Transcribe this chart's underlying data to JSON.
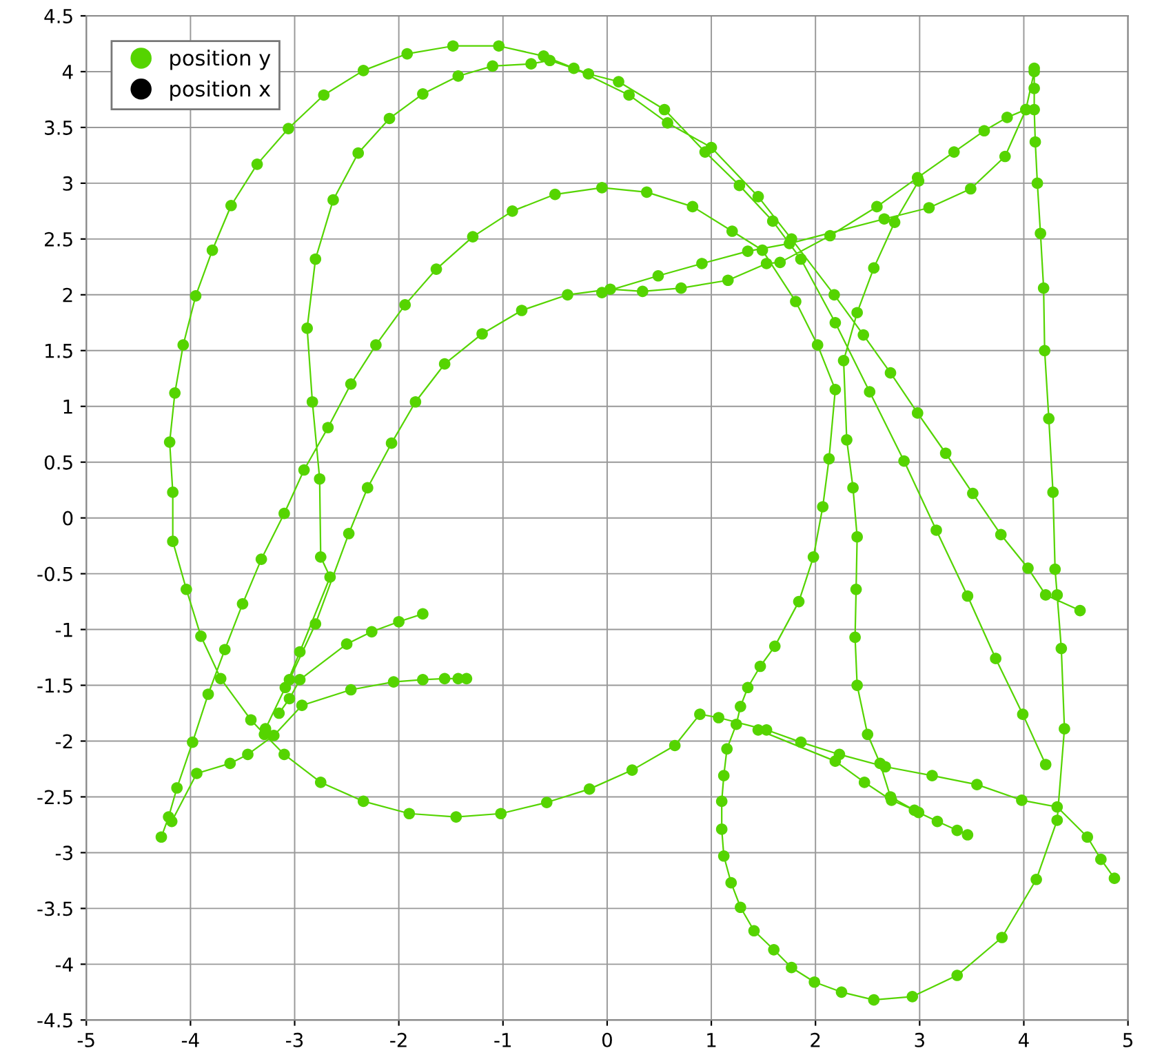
{
  "chart_data": {
    "type": "line",
    "marker": "circle",
    "grid": true,
    "legend": "top left",
    "xlim": [
      -5,
      5
    ],
    "xticks": [
      -5,
      -4,
      -3,
      -2,
      -1,
      0,
      1,
      2,
      3,
      4,
      5
    ],
    "ylim": [
      -4.5,
      4.5
    ],
    "yticks": [
      -4.5,
      -4,
      -3.5,
      -3,
      -2.5,
      -2,
      -1.5,
      -1,
      -0.5,
      0,
      0.5,
      1,
      1.5,
      2,
      2.5,
      3,
      3.5,
      4,
      4.5
    ],
    "series": [
      {
        "name": "position y",
        "color": "#55d400",
        "x": [
          -4.28,
          -4.21,
          -4.13,
          -3.98,
          -3.83,
          -3.67,
          -3.5,
          -3.32,
          -3.1,
          -2.91,
          -2.68,
          -2.46,
          -2.22,
          -1.94,
          -1.64,
          -1.29,
          -0.91,
          -0.5,
          -0.05,
          0.38,
          0.82,
          1.2,
          1.49,
          1.81,
          2.02,
          2.19,
          2.13,
          2.07,
          1.98,
          1.84,
          1.61,
          1.47,
          1.35,
          1.28,
          1.24,
          1.15,
          1.12,
          1.1,
          1.1,
          1.12,
          1.19,
          1.28,
          1.41,
          1.6,
          1.77,
          1.99,
          2.25,
          2.56,
          2.93,
          3.36,
          3.79,
          4.12,
          4.32,
          4.39,
          4.36,
          4.32,
          4.3,
          4.28,
          4.24,
          4.2,
          4.19,
          4.16,
          4.13,
          4.11,
          4.1,
          4.1,
          4.1,
          null,
          -1.35,
          -1.43,
          -1.56,
          -1.77,
          -2.05,
          -2.46,
          -2.93,
          -3.2,
          -3.45,
          -3.62,
          -3.94,
          -4.18,
          null,
          4.21,
          3.99,
          3.73,
          3.46,
          3.16,
          2.85,
          2.52,
          2.19,
          1.86,
          1.59,
          1.27,
          0.94,
          0.55,
          0.11,
          -0.18,
          -0.61,
          -1.04,
          -1.48,
          -1.92,
          -2.34,
          -2.72,
          -3.06,
          -3.36,
          -3.61,
          -3.79,
          -3.95,
          -4.07,
          -4.15,
          -4.2,
          -4.17,
          -4.17,
          -4.04,
          -3.9,
          -3.71,
          -3.42,
          -3.29,
          -3.1,
          -2.75,
          -2.34,
          -1.9,
          -1.45,
          -1.02,
          -0.58,
          -0.17,
          0.24,
          0.65,
          0.89,
          1.07,
          1.53,
          1.86,
          2.23,
          2.67,
          3.12,
          3.55,
          3.98,
          4.32,
          4.61,
          4.74,
          4.87,
          null,
          -3.28,
          -3.09,
          -2.95,
          -2.66,
          -2.75,
          -2.76,
          -2.83,
          -2.88,
          -2.8,
          -2.63,
          -2.39,
          -2.09,
          -1.77,
          -1.43,
          -1.1,
          -0.73,
          -0.55,
          -0.32,
          0.21,
          0.58,
          1.0,
          1.45,
          1.77,
          2.18,
          2.46,
          2.72,
          2.98,
          3.25,
          3.51,
          3.78,
          4.04,
          4.21,
          4.54,
          null,
          -1.77,
          -2.0,
          -2.26,
          -2.5,
          -2.95,
          -3.05,
          -3.15,
          null,
          -3.05,
          -2.8,
          -2.48,
          -2.3,
          -2.07,
          -1.84,
          -1.56,
          -1.2,
          -0.82,
          -0.38,
          0.03,
          0.34,
          0.71,
          1.16,
          1.53,
          1.66,
          2.14,
          2.59,
          2.98,
          3.33,
          3.62,
          3.84,
          4.02,
          4.1,
          null,
          -0.05,
          0.49,
          0.91,
          1.35,
          1.75,
          2.66,
          3.09,
          3.49,
          3.82,
          4.02,
          null,
          2.99,
          2.76,
          2.56,
          2.4,
          2.27,
          2.3,
          2.36,
          2.4,
          2.39,
          2.38,
          2.4,
          2.5,
          2.62,
          2.72,
          2.99,
          3.17,
          3.36,
          3.46,
          null,
          1.45,
          2.19,
          2.47,
          2.73,
          2.95
        ],
        "values": [
          -2.86,
          -2.68,
          -2.42,
          -2.01,
          -1.58,
          -1.18,
          -0.77,
          -0.37,
          0.04,
          0.43,
          0.81,
          1.2,
          1.55,
          1.91,
          2.23,
          2.52,
          2.75,
          2.9,
          2.96,
          2.92,
          2.79,
          2.57,
          2.4,
          1.94,
          1.55,
          1.15,
          0.53,
          0.1,
          -0.35,
          -0.75,
          -1.15,
          -1.33,
          -1.52,
          -1.69,
          -1.85,
          -2.07,
          -2.31,
          -2.54,
          -2.79,
          -3.03,
          -3.27,
          -3.49,
          -3.7,
          -3.87,
          -4.03,
          -4.16,
          -4.25,
          -4.32,
          -4.29,
          -4.1,
          -3.76,
          -3.24,
          -2.71,
          -1.89,
          -1.17,
          -0.69,
          -0.46,
          0.23,
          0.89,
          1.5,
          2.06,
          2.55,
          3.0,
          3.37,
          3.66,
          3.85,
          4.03,
          null,
          -1.44,
          -1.44,
          -1.44,
          -1.45,
          -1.47,
          -1.54,
          -1.68,
          -1.95,
          -2.12,
          -2.2,
          -2.29,
          -2.72,
          null,
          -2.21,
          -1.76,
          -1.26,
          -0.7,
          -0.11,
          0.51,
          1.13,
          1.75,
          2.32,
          2.66,
          2.98,
          3.28,
          3.66,
          3.91,
          3.98,
          4.14,
          4.23,
          4.23,
          4.16,
          4.01,
          3.79,
          3.49,
          3.17,
          2.8,
          2.4,
          1.99,
          1.55,
          1.12,
          0.68,
          0.23,
          -0.21,
          -0.64,
          -1.06,
          -1.44,
          -1.81,
          -1.94,
          -2.12,
          -2.37,
          -2.54,
          -2.65,
          -2.68,
          -2.65,
          -2.55,
          -2.43,
          -2.26,
          -2.04,
          -1.76,
          -1.79,
          -1.9,
          -2.01,
          -2.12,
          -2.23,
          -2.31,
          -2.39,
          -2.53,
          -2.59,
          -2.86,
          -3.06,
          -3.23,
          null,
          -1.89,
          -1.52,
          -1.2,
          -0.53,
          -0.35,
          0.35,
          1.04,
          1.7,
          2.32,
          2.85,
          3.27,
          3.58,
          3.8,
          3.96,
          4.05,
          4.07,
          4.1,
          4.03,
          3.79,
          3.54,
          3.32,
          2.88,
          2.5,
          2.0,
          1.64,
          1.3,
          0.94,
          0.58,
          0.22,
          -0.15,
          -0.45,
          -0.69,
          -0.83,
          null,
          -0.86,
          -0.93,
          -1.02,
          -1.13,
          -1.45,
          -1.62,
          -1.75,
          null,
          -1.45,
          -0.95,
          -0.14,
          0.27,
          0.67,
          1.04,
          1.38,
          1.65,
          1.86,
          2.0,
          2.05,
          2.03,
          2.06,
          2.13,
          2.28,
          2.29,
          2.53,
          2.79,
          3.05,
          3.28,
          3.47,
          3.59,
          3.66,
          4.0,
          null,
          2.02,
          2.17,
          2.28,
          2.39,
          2.46,
          2.68,
          2.78,
          2.95,
          3.24,
          3.66,
          null,
          3.02,
          2.65,
          2.24,
          1.84,
          1.41,
          0.7,
          0.27,
          -0.17,
          -0.64,
          -1.07,
          -1.5,
          -1.94,
          -2.2,
          -2.5,
          -2.64,
          -2.72,
          -2.8,
          -2.84,
          null,
          -1.9,
          -2.18,
          -2.37,
          -2.53,
          -2.62
        ]
      },
      {
        "name": "position x",
        "color": "#000000"
      }
    ]
  }
}
